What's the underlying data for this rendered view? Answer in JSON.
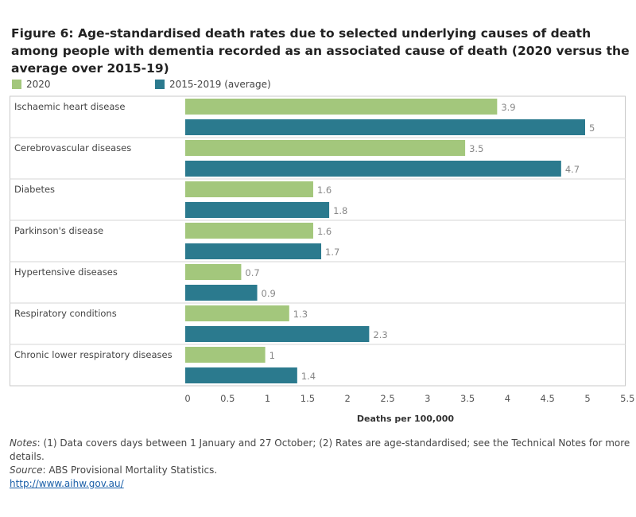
{
  "title": "Figure 6: Age-standardised death rates due to selected underlying causes of death among people with dementia recorded as an associated cause of death (2020 versus the average over 2015-19)",
  "legend": [
    {
      "label": "2020",
      "color": "#a3c77c"
    },
    {
      "label": "2015-2019 (average)",
      "color": "#2b7a8e"
    }
  ],
  "chart_data": {
    "type": "bar",
    "orientation": "horizontal",
    "categories": [
      "Ischaemic heart disease",
      "Cerebrovascular diseases",
      "Diabetes",
      "Parkinson's disease",
      "Hypertensive diseases",
      "Respiratory conditions",
      "Chronic lower respiratory diseases"
    ],
    "series": [
      {
        "name": "2020",
        "color": "#a3c77c",
        "values": [
          3.9,
          3.5,
          1.6,
          1.6,
          0.7,
          1.3,
          1
        ]
      },
      {
        "name": "2015-2019 (average)",
        "color": "#2b7a8e",
        "values": [
          5,
          4.7,
          1.8,
          1.7,
          0.9,
          2.3,
          1.4
        ]
      }
    ],
    "value_labels": [
      [
        "3.9",
        "3.5",
        "1.6",
        "1.6",
        "0.7",
        "1.3",
        "1"
      ],
      [
        "5",
        "4.7",
        "1.8",
        "1.7",
        "0.9",
        "2.3",
        "1.4"
      ]
    ],
    "xlabel": "Deaths per 100,000",
    "xlim": [
      0,
      5.5
    ],
    "xticks": [
      "0",
      "0.5",
      "1",
      "1.5",
      "2",
      "2.5",
      "3",
      "3.5",
      "4",
      "4.5",
      "5",
      "5.5"
    ],
    "legend_position": "top-left"
  },
  "notes": {
    "notes_label": "Notes",
    "notes_text": ": (1) Data covers days between 1 January and 27 October; (2) Rates are age-standardised; see the Technical Notes for more details.",
    "source_label": "Source",
    "source_text": ": ABS Provisional Mortality Statistics.",
    "link": "http://www.aihw.gov.au/"
  }
}
